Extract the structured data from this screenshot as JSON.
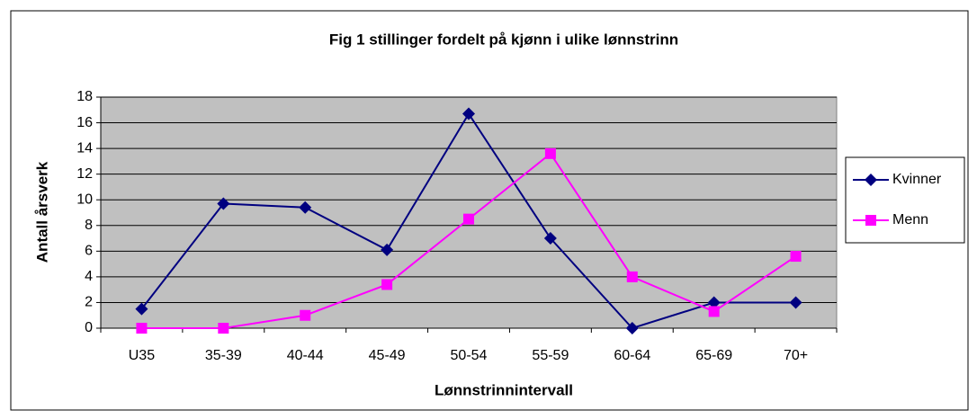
{
  "chart_data": {
    "type": "line",
    "title": "Fig 1 stillinger fordelt på kjønn i ulike lønnstrinn",
    "x_label": "Lønnstrinnintervall",
    "y_label": "Antall årsverk",
    "categories": [
      "U35",
      "35-39",
      "40-44",
      "45-49",
      "50-54",
      "55-59",
      "60-64",
      "65-69",
      "70+"
    ],
    "series": [
      {
        "name": "Kvinner",
        "color": "#000080",
        "marker": "diamond",
        "values": [
          1.5,
          9.7,
          9.4,
          6.1,
          16.7,
          7.0,
          0,
          2,
          2
        ]
      },
      {
        "name": "Menn",
        "color": "#ff00ff",
        "marker": "square",
        "values": [
          0,
          0,
          1.0,
          3.4,
          8.5,
          13.6,
          4.0,
          1.3,
          5.6
        ]
      }
    ],
    "ylim": [
      0,
      18
    ],
    "yticks": [
      0,
      2,
      4,
      6,
      8,
      10,
      12,
      14,
      16,
      18
    ],
    "grid": true,
    "legend": "right"
  }
}
